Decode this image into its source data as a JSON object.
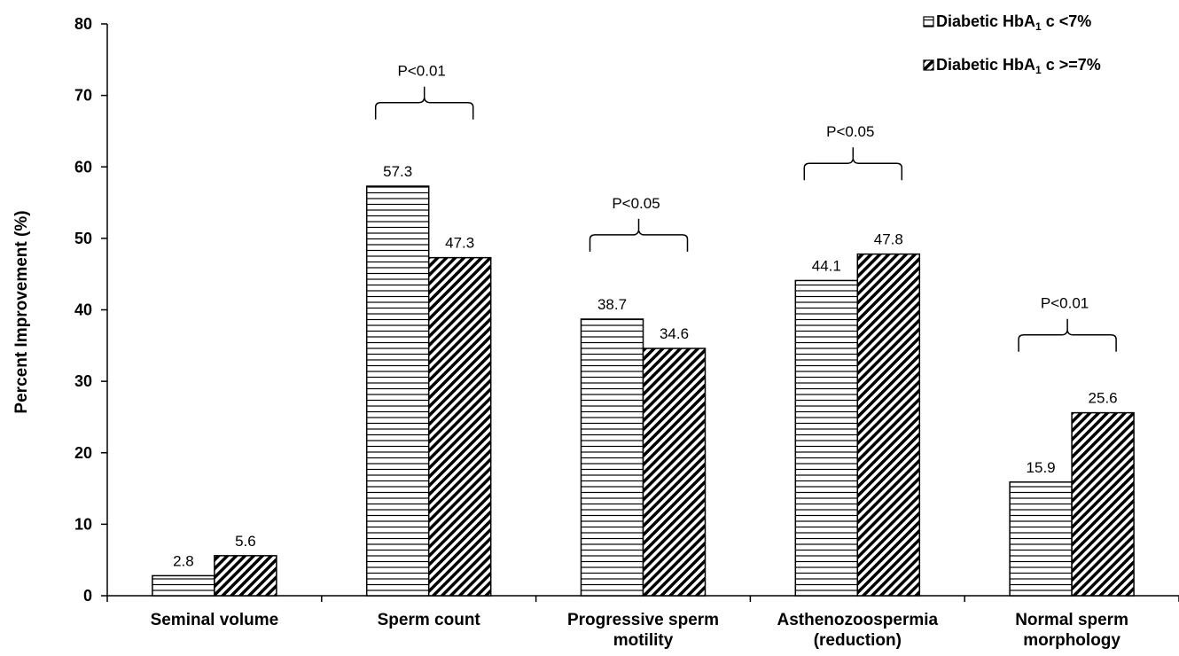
{
  "chart_data": {
    "type": "bar",
    "categories": [
      [
        "Seminal volume"
      ],
      [
        "Sperm count"
      ],
      [
        "Progressive sperm",
        "motility"
      ],
      [
        "Asthenozoospermia",
        "(reduction)"
      ],
      [
        "Normal sperm",
        "morphology"
      ]
    ],
    "series": [
      {
        "name_parts": [
          "Diabetic HbA",
          "1",
          " c <7%"
        ],
        "values": [
          2.8,
          57.3,
          38.7,
          44.1,
          15.9
        ],
        "pattern": "horizontal"
      },
      {
        "name_parts": [
          "Diabetic HbA",
          "1",
          " c >=7%"
        ],
        "values": [
          5.6,
          47.3,
          34.6,
          47.8,
          25.6
        ],
        "pattern": "diagonal"
      }
    ],
    "data_labels": [
      [
        "2.8",
        "5.6"
      ],
      [
        "57.3",
        "47.3"
      ],
      [
        "38.7",
        "34.6"
      ],
      [
        "44.1",
        "47.8"
      ],
      [
        "15.9",
        "25.6"
      ]
    ],
    "annotations": [
      {
        "category_index": 1,
        "text": "P<0.01",
        "bracket_y": 69
      },
      {
        "category_index": 2,
        "text": "P<0.05",
        "bracket_y": 50.5
      },
      {
        "category_index": 3,
        "text": "P<0.05",
        "bracket_y": 60.5
      },
      {
        "category_index": 4,
        "text": "P<0.01",
        "bracket_y": 36.5
      }
    ],
    "ylabel": "Percent Improvement (%)",
    "xlabel": "",
    "ylim": [
      0,
      80
    ],
    "yticks": [
      0,
      10,
      20,
      30,
      40,
      50,
      60,
      70,
      80
    ],
    "grid": false,
    "legend_position": "top-right"
  }
}
